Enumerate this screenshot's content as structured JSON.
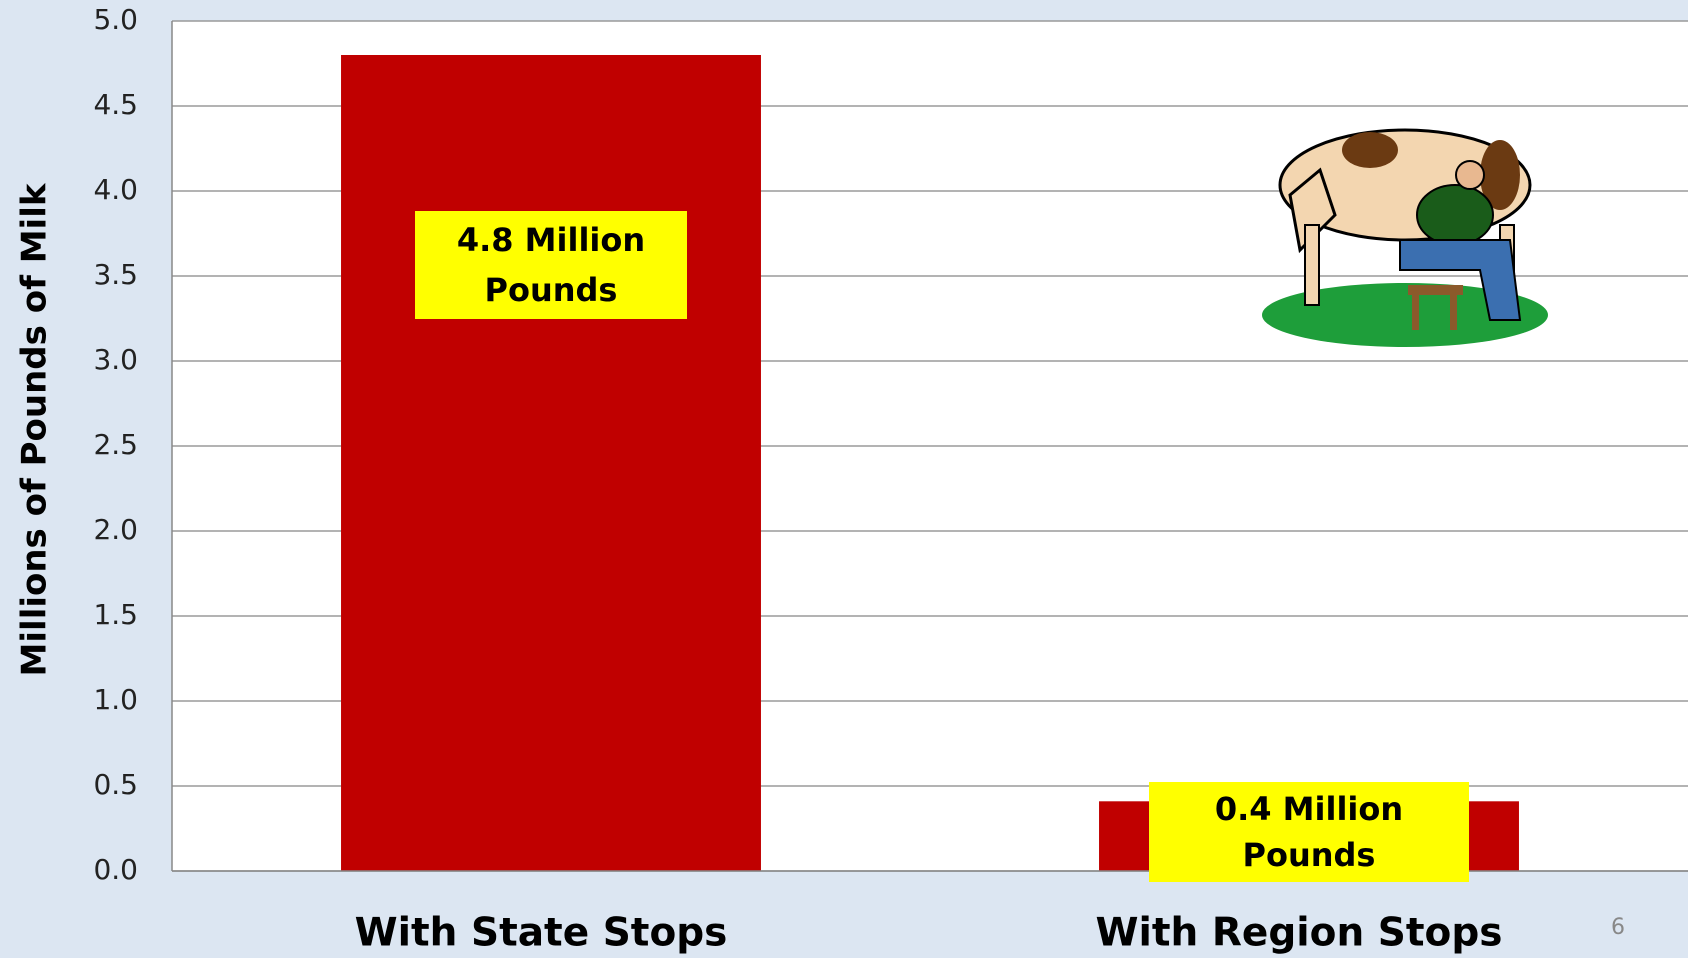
{
  "chart_data": {
    "type": "bar",
    "y_axis_label": "Millions of Pounds of  Milk",
    "categories": [
      "With State Stops",
      "With Region Stops"
    ],
    "values": [
      4.8,
      0.41
    ],
    "value_labels": [
      "4.8 Million Pounds",
      "0.4 Million Pounds"
    ],
    "color": "#c00000",
    "label_color": "#ffff00",
    "ylim": [
      0,
      5
    ],
    "yticks": [
      {
        "value": 0,
        "label": "0.0"
      },
      0.5,
      {
        "value": 1,
        "label": "1.0"
      },
      1.5,
      {
        "value": 2,
        "label": "2.0"
      },
      2.5,
      {
        "value": 3,
        "label": "3.0"
      },
      3.5,
      {
        "value": 4,
        "label": "4.0"
      },
      4.5,
      {
        "value": 5,
        "label": "5.0"
      }
    ],
    "grid": true
  },
  "page_number": "6"
}
